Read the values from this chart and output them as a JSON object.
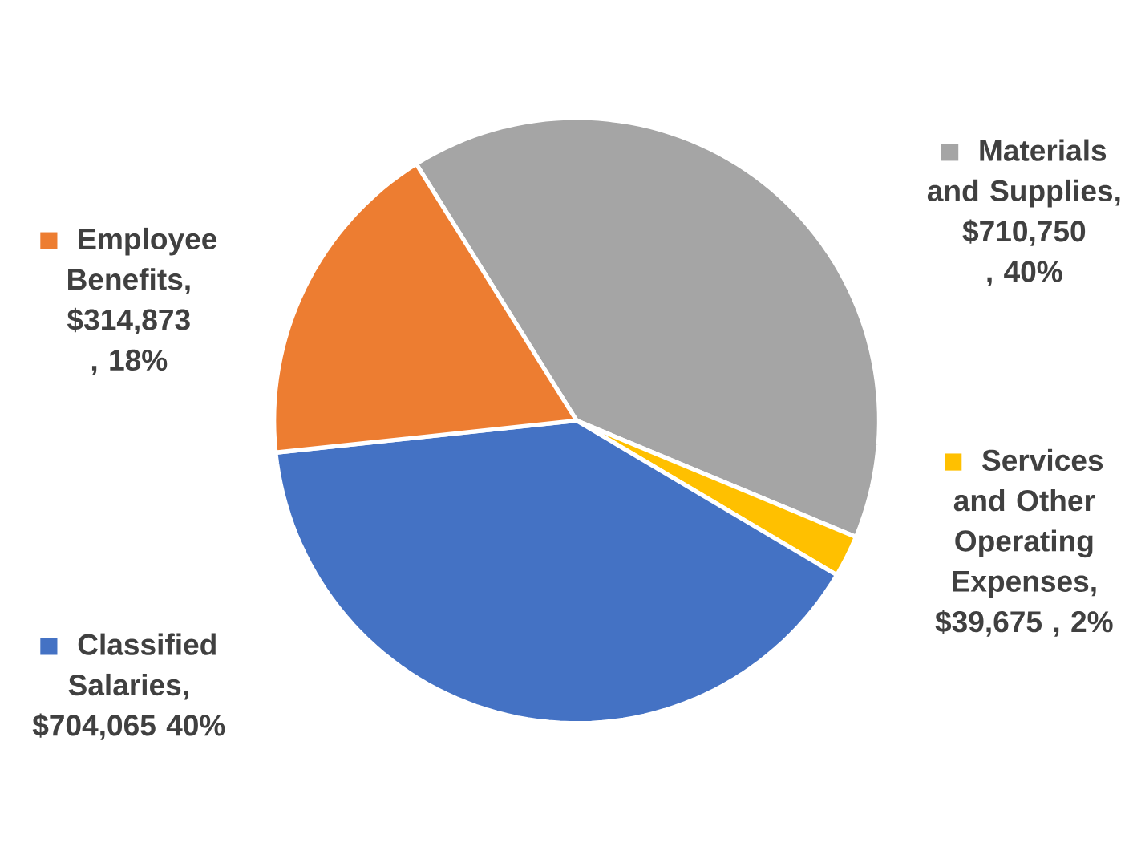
{
  "chart_data": {
    "type": "pie",
    "categories": [
      "Materials and Supplies",
      "Services and Other Operating Expenses",
      "Classified Salaries",
      "Employee Benefits"
    ],
    "values": [
      710750,
      39675,
      704065,
      314873
    ],
    "value_labels": [
      ", $710,750 , 40%",
      ", $39,675 , 2%",
      ", $704,065 40%",
      ", $314,873 , 18%"
    ],
    "legend": "left",
    "colors": [
      "#a5a5a5",
      "#ffc000",
      "#4472c4",
      "#ed7d31"
    ]
  }
}
